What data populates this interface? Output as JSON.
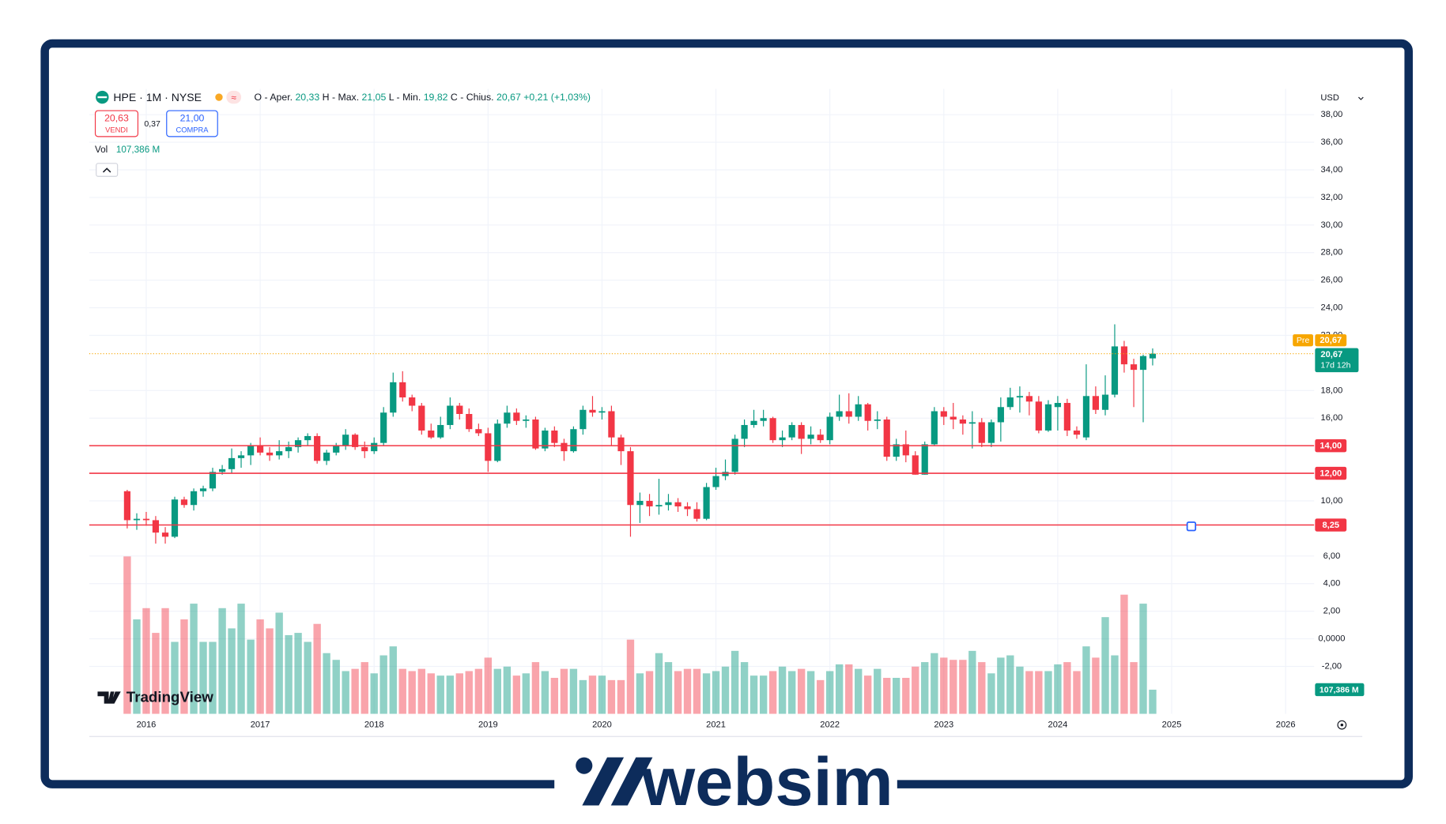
{
  "chart_data": {
    "type": "candlestick",
    "x": [
      2015.833,
      2015.917,
      2016,
      2016.083,
      2016.167,
      2016.25,
      2016.333,
      2016.417,
      2016.5,
      2016.583,
      2016.667,
      2016.75,
      2016.833,
      2016.917,
      2017,
      2017.083,
      2017.167,
      2017.25,
      2017.333,
      2017.417,
      2017.5,
      2017.583,
      2017.667,
      2017.75,
      2017.833,
      2017.917,
      2018,
      2018.083,
      2018.167,
      2018.25,
      2018.333,
      2018.417,
      2018.5,
      2018.583,
      2018.667,
      2018.75,
      2018.833,
      2018.917,
      2019,
      2019.083,
      2019.167,
      2019.25,
      2019.333,
      2019.417,
      2019.5,
      2019.583,
      2019.667,
      2019.75,
      2019.833,
      2019.917,
      2020,
      2020.083,
      2020.167,
      2020.25,
      2020.333,
      2020.417,
      2020.5,
      2020.583,
      2020.667,
      2020.75,
      2020.833,
      2020.917,
      2021,
      2021.083,
      2021.167,
      2021.25,
      2021.333,
      2021.417,
      2021.5,
      2021.583,
      2021.667,
      2021.75,
      2021.833,
      2021.917,
      2022,
      2022.083,
      2022.167,
      2022.25,
      2022.333,
      2022.417,
      2022.5,
      2022.583,
      2022.667,
      2022.75,
      2022.833,
      2022.917,
      2023,
      2023.083,
      2023.167,
      2023.25,
      2023.333,
      2023.417,
      2023.5,
      2023.583,
      2023.667,
      2023.75,
      2023.833,
      2023.917,
      2024,
      2024.083,
      2024.167,
      2024.25,
      2024.333,
      2024.417,
      2024.5,
      2024.583,
      2024.667,
      2024.75,
      2024.833
    ],
    "open": [
      10.7,
      8.6,
      8.7,
      8.6,
      7.7,
      7.4,
      10.1,
      9.7,
      10.7,
      10.9,
      12.1,
      12.3,
      13.1,
      13.3,
      14.0,
      13.5,
      13.3,
      13.6,
      13.9,
      14.4,
      14.7,
      12.9,
      13.5,
      14.0,
      14.8,
      13.9,
      13.6,
      14.2,
      16.4,
      18.6,
      17.5,
      16.9,
      15.1,
      14.6,
      15.5,
      16.9,
      16.3,
      15.2,
      14.9,
      12.9,
      15.6,
      16.4,
      15.8,
      15.9,
      13.8,
      15.1,
      14.2,
      13.6,
      15.2,
      16.6,
      16.4,
      16.5,
      14.6,
      13.6,
      9.7,
      10.0,
      9.6,
      9.7,
      9.9,
      9.6,
      9.4,
      8.7,
      11.0,
      11.8,
      12.1,
      14.5,
      15.5,
      15.8,
      16.0,
      14.4,
      14.6,
      15.5,
      14.5,
      14.8,
      14.4,
      16.1,
      16.5,
      16.1,
      17.0,
      15.8,
      15.9,
      13.2,
      14.1,
      13.3,
      11.9,
      14.1,
      16.5,
      16.1,
      15.9,
      15.6,
      15.7,
      14.2,
      15.7,
      16.8,
      17.5,
      17.6,
      17.2,
      15.1,
      16.8,
      17.1,
      15.1,
      14.6,
      17.6,
      16.6,
      17.7,
      21.2,
      19.9,
      19.5,
      20.33
    ],
    "high": [
      10.8,
      9.1,
      9.2,
      8.9,
      8.1,
      10.3,
      10.3,
      10.9,
      11.1,
      12.4,
      12.6,
      13.8,
      13.6,
      14.2,
      14.6,
      13.9,
      14.4,
      14.3,
      14.6,
      14.9,
      14.9,
      13.7,
      14.2,
      15.2,
      14.9,
      14.3,
      14.6,
      16.8,
      19.3,
      19.4,
      17.7,
      17.1,
      15.6,
      16.1,
      17.5,
      17.1,
      16.7,
      15.6,
      15.3,
      15.9,
      16.9,
      16.7,
      16.2,
      16.1,
      15.3,
      15.4,
      14.5,
      15.4,
      16.9,
      17.6,
      16.8,
      16.9,
      14.8,
      13.9,
      10.6,
      10.5,
      11.6,
      10.5,
      10.2,
      9.9,
      9.9,
      11.3,
      12.4,
      13.0,
      14.8,
      15.9,
      16.6,
      16.6,
      16.1,
      15.1,
      15.7,
      15.7,
      15.4,
      15.2,
      16.4,
      17.7,
      17.8,
      17.6,
      17.1,
      16.5,
      16.1,
      14.5,
      15.1,
      13.6,
      14.3,
      16.8,
      16.8,
      17.1,
      16.2,
      16.5,
      16.0,
      15.9,
      17.5,
      18.2,
      18.3,
      17.9,
      17.6,
      17.3,
      17.6,
      17.4,
      15.4,
      19.9,
      18.3,
      19.1,
      22.8,
      21.6,
      20.3,
      20.6,
      21.05
    ],
    "low": [
      8.0,
      7.9,
      8.2,
      6.9,
      6.9,
      7.3,
      9.5,
      9.3,
      10.3,
      10.7,
      11.9,
      12.0,
      12.4,
      12.6,
      13.3,
      12.9,
      13.0,
      13.1,
      13.5,
      14.0,
      12.7,
      12.6,
      13.3,
      13.7,
      13.7,
      13.1,
      13.4,
      14.0,
      16.1,
      17.2,
      16.5,
      14.8,
      14.5,
      14.5,
      15.2,
      15.9,
      15.0,
      14.7,
      12.1,
      12.8,
      15.3,
      15.5,
      15.3,
      13.7,
      13.6,
      13.9,
      12.9,
      13.5,
      14.8,
      16.1,
      15.9,
      14.0,
      12.6,
      7.4,
      8.4,
      8.9,
      9.0,
      9.3,
      9.2,
      8.9,
      8.5,
      8.6,
      10.8,
      11.5,
      11.9,
      13.9,
      15.3,
      15.4,
      14.2,
      13.9,
      14.4,
      13.4,
      14.1,
      14.2,
      14.1,
      15.8,
      15.6,
      15.8,
      15.1,
      15.2,
      12.9,
      12.9,
      12.8,
      11.9,
      11.9,
      14.0,
      15.5,
      15.2,
      14.8,
      13.8,
      13.9,
      13.9,
      14.3,
      16.6,
      16.4,
      16.2,
      14.9,
      15.0,
      15.1,
      14.7,
      14.5,
      14.4,
      16.3,
      16.2,
      17.5,
      19.3,
      16.8,
      15.7,
      19.82
    ],
    "close": [
      8.6,
      8.7,
      8.6,
      7.7,
      7.4,
      10.1,
      9.7,
      10.7,
      10.9,
      12.1,
      12.3,
      13.1,
      13.3,
      14.0,
      13.5,
      13.3,
      13.6,
      13.9,
      14.4,
      14.7,
      12.9,
      13.5,
      14.0,
      14.8,
      13.9,
      13.6,
      14.2,
      16.4,
      18.6,
      17.5,
      16.9,
      15.1,
      14.6,
      15.5,
      16.9,
      16.3,
      15.2,
      14.9,
      12.9,
      15.6,
      16.4,
      15.8,
      15.9,
      13.8,
      15.1,
      14.2,
      13.6,
      15.2,
      16.6,
      16.4,
      16.5,
      14.6,
      13.6,
      9.7,
      10.0,
      9.6,
      9.7,
      9.9,
      9.6,
      9.4,
      8.7,
      11.0,
      11.8,
      12.1,
      14.5,
      15.5,
      15.8,
      16.0,
      14.4,
      14.6,
      15.5,
      14.5,
      14.8,
      14.4,
      16.1,
      16.5,
      16.1,
      17.0,
      15.8,
      15.9,
      13.2,
      14.1,
      13.3,
      11.9,
      14.1,
      16.5,
      16.1,
      15.9,
      15.6,
      15.7,
      14.2,
      15.7,
      16.8,
      17.5,
      17.6,
      17.2,
      15.1,
      17.0,
      17.1,
      15.1,
      14.8,
      17.6,
      16.6,
      17.7,
      21.2,
      19.9,
      19.5,
      20.5,
      20.67
    ],
    "volume": [
      700,
      420,
      470,
      360,
      470,
      320,
      420,
      490,
      320,
      320,
      470,
      380,
      490,
      330,
      420,
      380,
      450,
      350,
      360,
      320,
      400,
      270,
      240,
      190,
      200,
      230,
      180,
      260,
      300,
      200,
      190,
      200,
      180,
      170,
      170,
      180,
      190,
      200,
      250,
      200,
      210,
      170,
      180,
      230,
      190,
      160,
      200,
      200,
      150,
      170,
      170,
      150,
      150,
      330,
      180,
      190,
      270,
      230,
      190,
      200,
      200,
      180,
      190,
      210,
      280,
      230,
      170,
      170,
      190,
      210,
      190,
      200,
      190,
      150,
      190,
      220,
      220,
      200,
      170,
      200,
      160,
      160,
      160,
      210,
      230,
      270,
      250,
      240,
      240,
      280,
      230,
      180,
      250,
      260,
      210,
      190,
      190,
      190,
      220,
      230,
      190,
      300,
      250,
      430,
      260,
      530,
      230,
      490,
      107.386
    ],
    "up_color": "#089981",
    "down_color": "#f23645",
    "grid": true,
    "xlim": [
      2015.5,
      2026.25
    ],
    "xticks": [
      2016,
      2017,
      2018,
      2019,
      2020,
      2021,
      2022,
      2023,
      2024,
      2025,
      2026
    ],
    "ylim": [
      -5.44,
      39.87
    ],
    "yticks": [
      {
        "value": 38,
        "label": "38,00"
      },
      {
        "value": 36,
        "label": "36,00"
      },
      {
        "value": 34,
        "label": "34,00"
      },
      {
        "value": 32,
        "label": "32,00"
      },
      {
        "value": 30,
        "label": "30,00"
      },
      {
        "value": 28,
        "label": "28,00"
      },
      {
        "value": 26,
        "label": "26,00"
      },
      {
        "value": 24,
        "label": "24,00"
      },
      {
        "value": 22,
        "label": "22,00"
      },
      {
        "value": 18,
        "label": "18,00"
      },
      {
        "value": 16,
        "label": "16,00"
      },
      {
        "value": 10,
        "label": "10,00"
      },
      {
        "value": 6,
        "label": "6,00"
      },
      {
        "value": 4,
        "label": "4,00"
      },
      {
        "value": 2,
        "label": "2,00"
      },
      {
        "value": 0,
        "label": "0,0000"
      },
      {
        "value": -2,
        "label": "-2,00"
      }
    ],
    "price_lines": [
      {
        "value": 14,
        "label": "14,00",
        "color": "#f23645"
      },
      {
        "value": 12,
        "label": "12,00",
        "color": "#f23645"
      },
      {
        "value": 8.25,
        "label": "8,25",
        "color": "#f23645"
      }
    ],
    "last_price": {
      "value": 20.67,
      "label": "20,67",
      "tag": "Pre",
      "countdown": "17d 12h"
    },
    "volume_label": "107,386 M"
  },
  "header": {
    "symbol": "HPE · 1M · NYSE",
    "ohlc": [
      {
        "label": "O - Aper.",
        "value": "20,33"
      },
      {
        "label": "H - Max.",
        "value": "21,05"
      },
      {
        "label": "L - Min.",
        "value": "19,82"
      },
      {
        "label": "C - Chius.",
        "value": "20,67"
      }
    ],
    "change": "+0,21 (+1,03%)",
    "sell": {
      "price": "20,63",
      "label": "VENDI"
    },
    "spread": "0,37",
    "buy": {
      "price": "21,00",
      "label": "COMPRA"
    },
    "vol_label": "Vol",
    "vol_value": "107,386 M",
    "currency": "USD"
  },
  "brand": {
    "tradingview": "TradingView",
    "websim": "websim"
  }
}
